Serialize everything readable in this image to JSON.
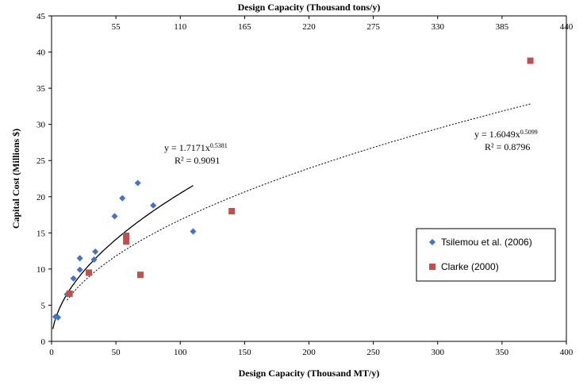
{
  "chart_data": {
    "type": "scatter",
    "title": "",
    "xlabel": "Design Capacity (Thousand MT/y)",
    "x2label": "Design Capacity (Thousand tons/y)",
    "ylabel": "Capital Cost (Millions $)",
    "xlim": [
      0,
      400
    ],
    "ylim": [
      0,
      45
    ],
    "x_ticks": [
      0,
      50,
      100,
      150,
      200,
      250,
      300,
      350,
      400
    ],
    "y_ticks": [
      0,
      5,
      10,
      15,
      20,
      25,
      30,
      35,
      40,
      45
    ],
    "x2_ticks": [
      {
        "label": "55",
        "x": 50
      },
      {
        "label": "110",
        "x": 100
      },
      {
        "label": "165",
        "x": 150
      },
      {
        "label": "220",
        "x": 200
      },
      {
        "label": "275",
        "x": 250
      },
      {
        "label": "330",
        "x": 300
      },
      {
        "label": "385",
        "x": 350
      },
      {
        "label": "440",
        "x": 400
      }
    ],
    "grid": false,
    "legend_position": "right",
    "series": [
      {
        "name": "Tsilemou et al. (2006)",
        "marker": "diamond",
        "color": "#4472C4",
        "points": [
          [
            3,
            3.4
          ],
          [
            5,
            3.3
          ],
          [
            12,
            6.5
          ],
          [
            17,
            8.7
          ],
          [
            22,
            9.9
          ],
          [
            22,
            11.5
          ],
          [
            33,
            11.3
          ],
          [
            34,
            12.4
          ],
          [
            49,
            17.3
          ],
          [
            55,
            19.8
          ],
          [
            67,
            21.9
          ],
          [
            79,
            18.8
          ],
          [
            110,
            15.2
          ]
        ]
      },
      {
        "name": "Clarke (2000)",
        "marker": "square",
        "color": "#C0504D",
        "points": [
          [
            14,
            6.6
          ],
          [
            29,
            9.5
          ],
          [
            58,
            14.6
          ],
          [
            58,
            13.8
          ],
          [
            69,
            9.2
          ],
          [
            140,
            18.0
          ],
          [
            372,
            38.8
          ]
        ]
      }
    ],
    "trendlines": [
      {
        "series": "Tsilemou et al. (2006)",
        "equation": "y = 1.7171x",
        "exponent": "0.5381",
        "r2": "R² = 0.9091",
        "a": 1.7171,
        "b": 0.5381,
        "x_range": [
          1,
          110
        ],
        "style": "solid"
      },
      {
        "series": "Clarke (2000)",
        "equation": "y = 1.6049x",
        "exponent": "0.5099",
        "r2": "R² = 0.8796",
        "a": 1.6049,
        "b": 0.5099,
        "x_range": [
          12,
          372
        ],
        "style": "dotted"
      }
    ]
  }
}
